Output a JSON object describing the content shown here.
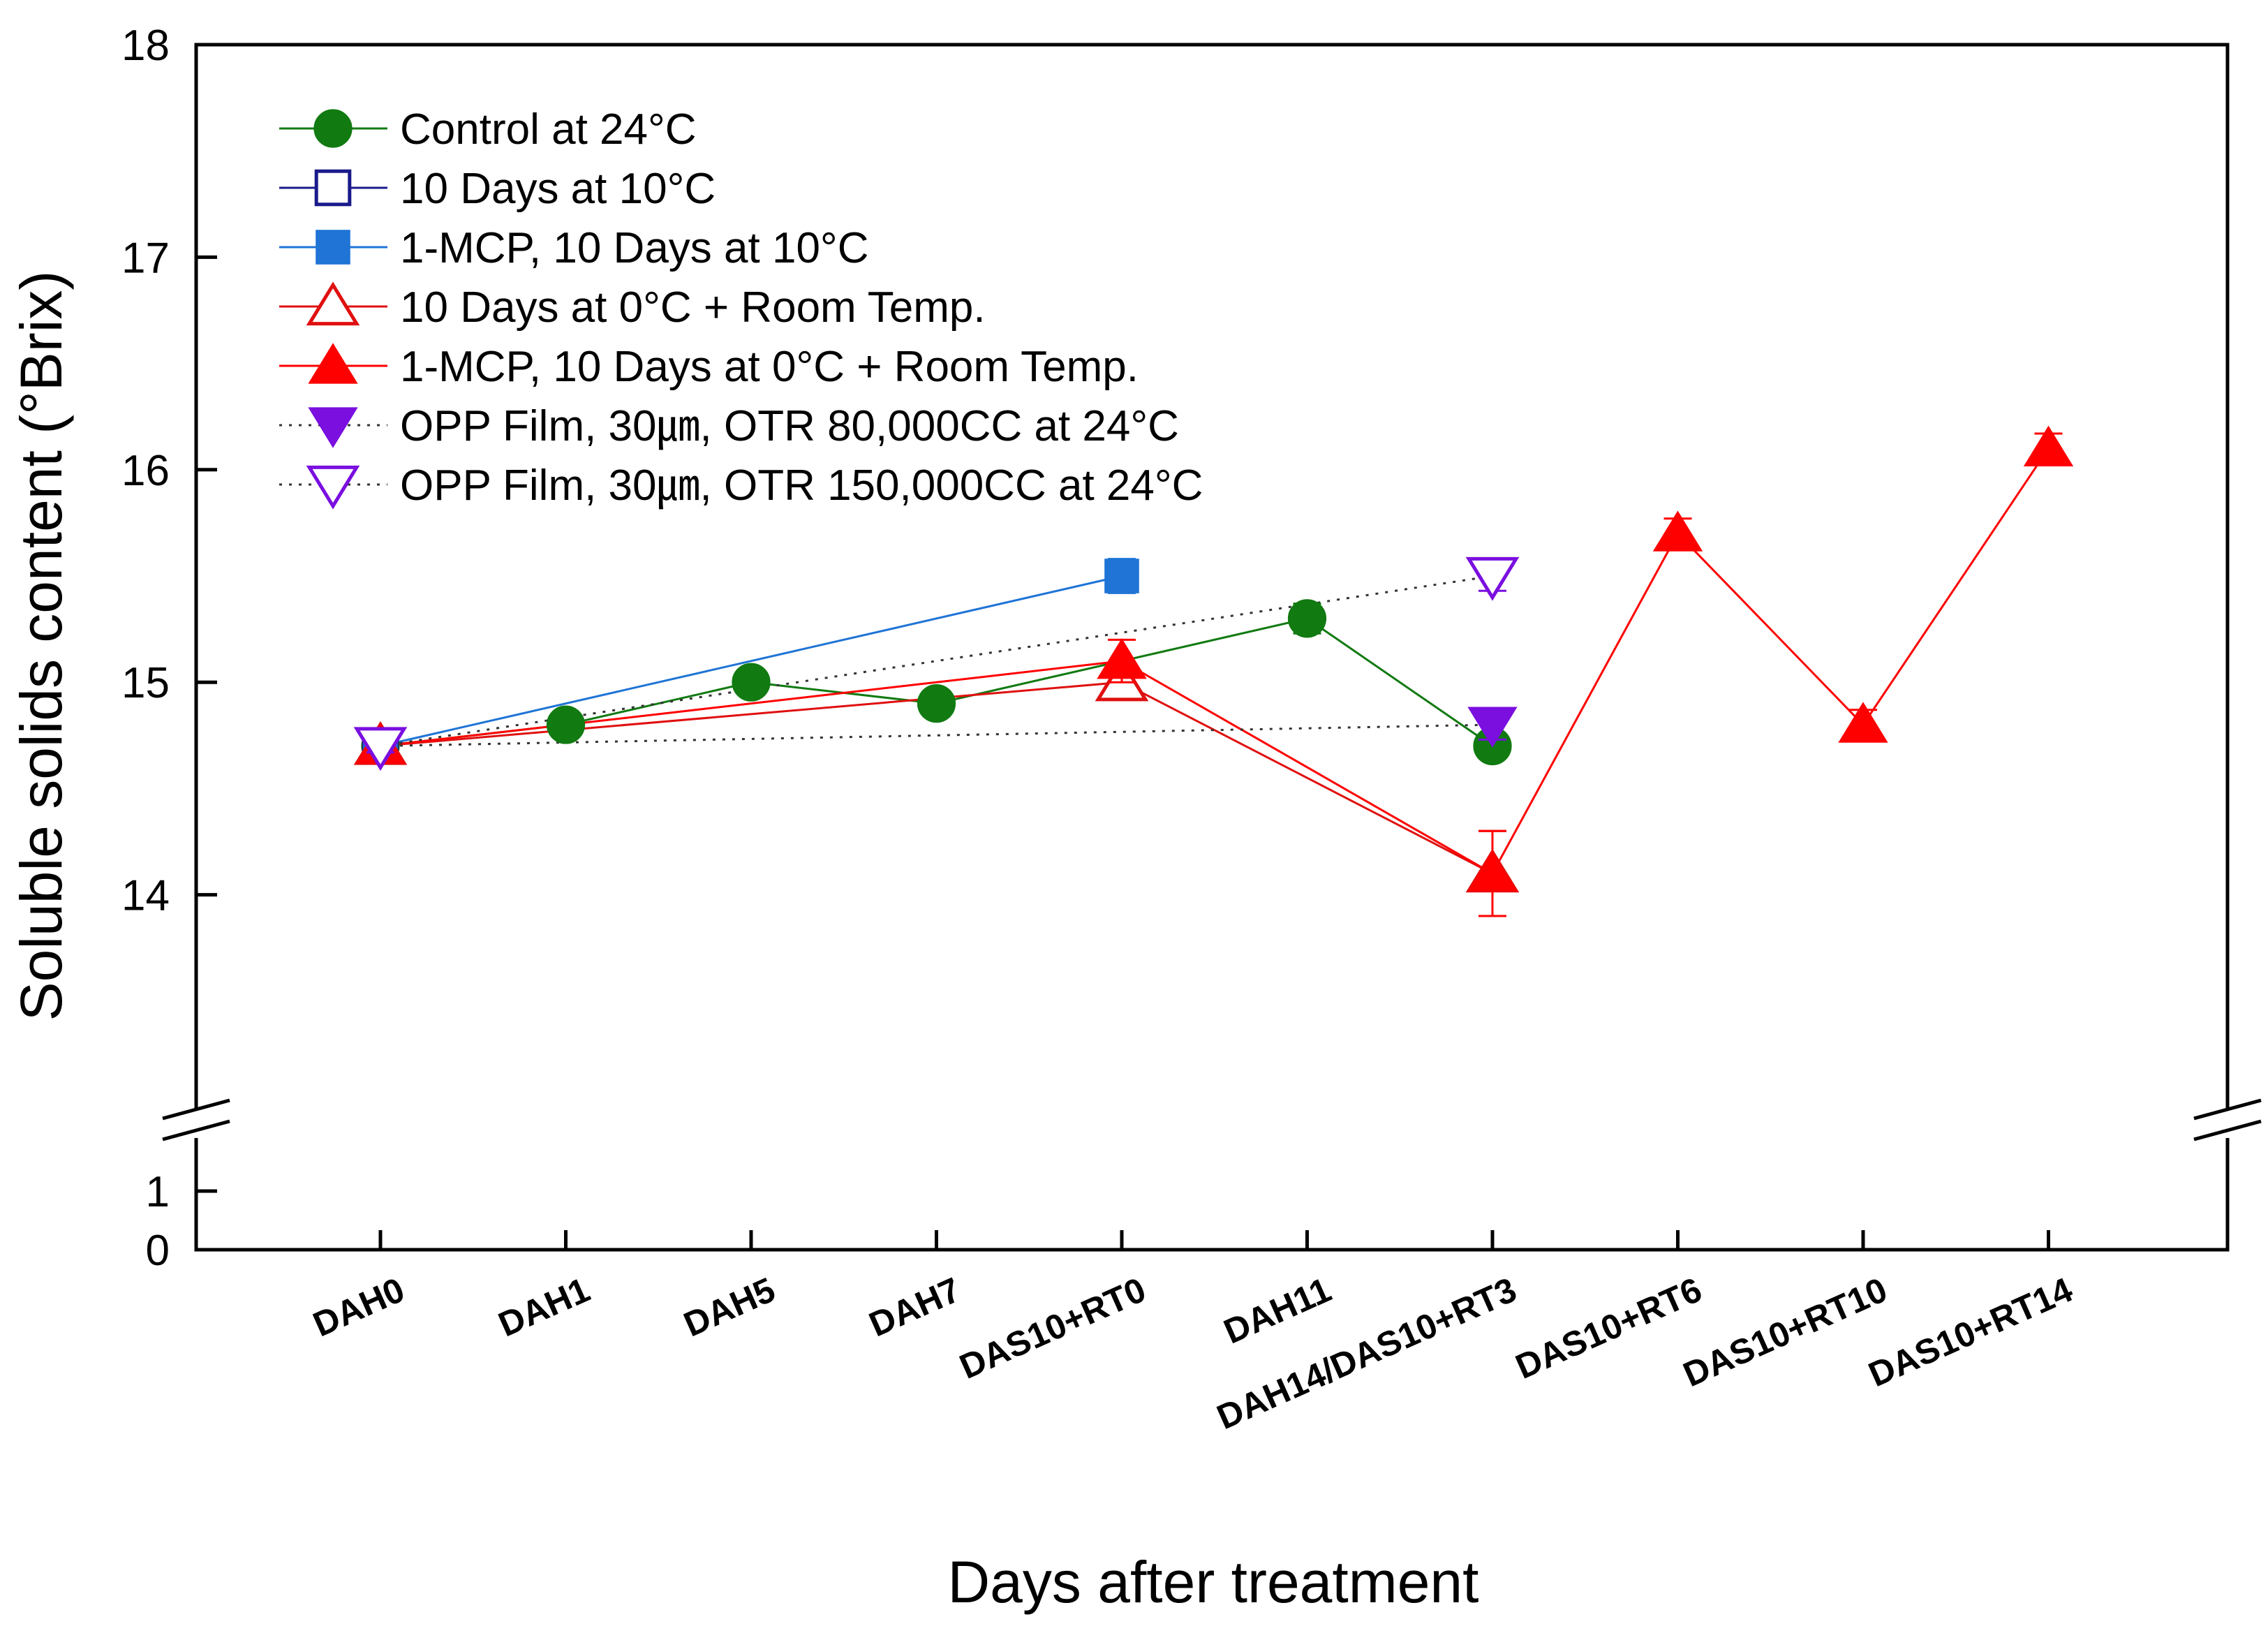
{
  "chart_data": {
    "type": "line",
    "title": "",
    "xlabel": "Days after treatment",
    "ylabel": "Soluble solids content (°Brix)",
    "categories": [
      "DAH0",
      "DAH1",
      "DAH5",
      "DAH7",
      "DAS10+RT0",
      "DAH11",
      "DAH14/DAS10+RT3",
      "DAS10+RT6",
      "DAS10+RT10",
      "DAS10+RT14"
    ],
    "ylim_upper": [
      13,
      18
    ],
    "ylim_lower": [
      0,
      1
    ],
    "y_ticks_upper": [
      14,
      15,
      16,
      17,
      18
    ],
    "y_ticks_lower": [
      0,
      1
    ],
    "y_tick_labels": {
      "14": "14",
      "15": "15",
      "16": "16",
      "17": "17",
      "18": "18",
      "0": "0",
      "1": "1"
    },
    "axis_break": true,
    "grid": false,
    "legend_position": "top-left",
    "series": [
      {
        "name": "Control at 24°C",
        "color": "#117a11",
        "marker": "circle",
        "filled": true,
        "line_style": "solid",
        "points": [
          [
            0,
            14.7
          ],
          [
            1,
            14.8
          ],
          [
            2,
            15.0
          ],
          [
            3,
            14.9
          ],
          [
            5,
            15.3
          ],
          [
            6,
            14.7
          ]
        ],
        "errors": [
          0.03,
          0.05,
          0.05,
          0.06,
          0.07,
          0.05
        ]
      },
      {
        "name": "10 Days at 10°C",
        "color": "#1a1a8c",
        "marker": "square",
        "filled": false,
        "line_style": "solid",
        "points": [
          [
            0,
            14.7
          ]
        ],
        "errors": [
          0.03
        ]
      },
      {
        "name": "1-MCP, 10 Days at 10°C",
        "color": "#1f74d6",
        "marker": "square",
        "filled": true,
        "line_style": "solid",
        "points": [
          [
            0,
            14.7
          ],
          [
            4,
            15.5
          ]
        ],
        "errors": [
          0.03,
          0.08
        ]
      },
      {
        "name": "10 Days at 0°C + Room Temp.",
        "color": "#e01010",
        "marker": "triangle-up",
        "filled": false,
        "line_style": "solid",
        "points": [
          [
            0,
            14.7
          ],
          [
            4,
            15.0
          ],
          [
            6,
            14.1
          ]
        ],
        "errors": [
          0.03,
          0.08,
          0.2
        ]
      },
      {
        "name": "1-MCP, 10 Days at 0°C + Room Temp.",
        "color": "#ff0000",
        "marker": "triangle-up",
        "filled": true,
        "line_style": "solid",
        "points": [
          [
            0,
            14.7
          ],
          [
            4,
            15.1
          ],
          [
            6,
            14.1
          ],
          [
            7,
            15.7
          ],
          [
            8,
            14.8
          ],
          [
            9,
            16.1
          ]
        ],
        "errors": [
          0.03,
          0.1,
          0.2,
          0.07,
          0.07,
          0.07
        ]
      },
      {
        "name": "OPP Film, 30㎛, OTR 80,000CC at 24°C",
        "color": "#7a0fe0",
        "marker": "triangle-down",
        "filled": true,
        "line_style": "dotted",
        "points": [
          [
            0,
            14.7
          ],
          [
            6,
            14.8
          ]
        ],
        "errors": [
          0.03,
          0.07
        ]
      },
      {
        "name": "OPP Film, 30㎛, OTR 150,000CC at 24°C",
        "color": "#7a0fe0",
        "marker": "triangle-down",
        "filled": false,
        "line_style": "dotted",
        "points": [
          [
            0,
            14.7
          ],
          [
            6,
            15.5
          ]
        ],
        "errors": [
          0.03,
          0.07
        ]
      }
    ]
  }
}
